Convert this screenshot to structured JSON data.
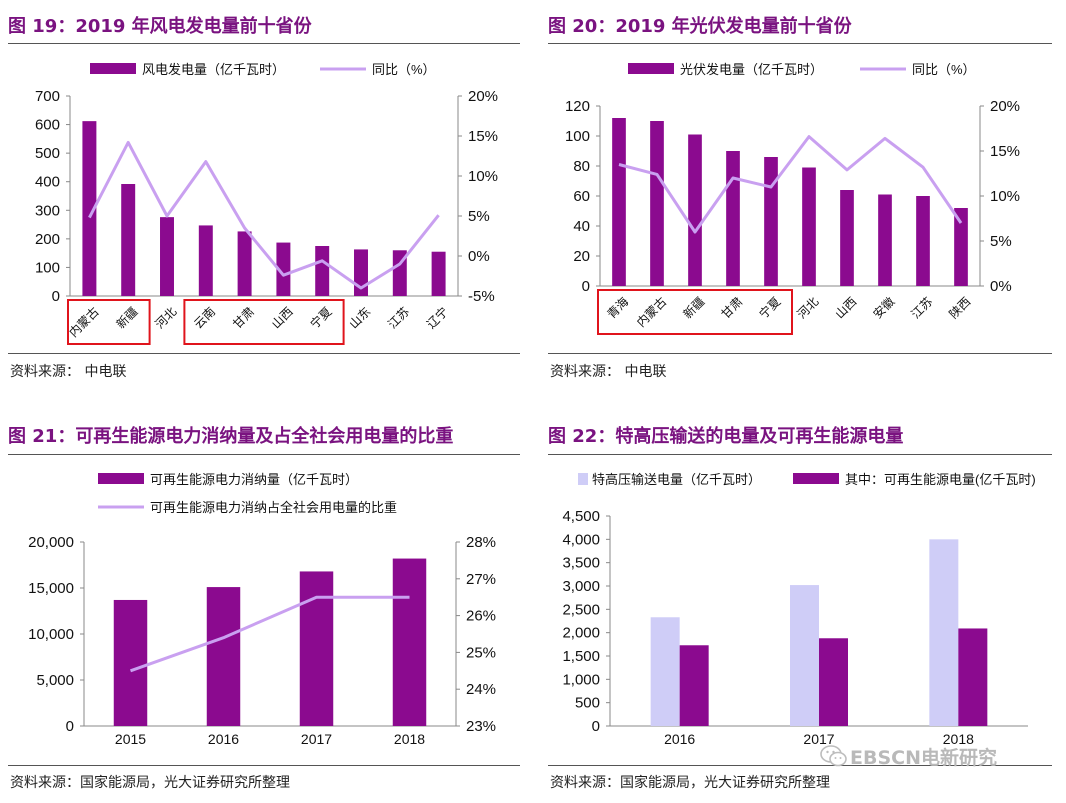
{
  "colors": {
    "bar": "#8b0a8f",
    "line": "#c9a0f0",
    "bar_light": "#cfcdf7",
    "title": "#7a1380",
    "highlight": "#e0141c"
  },
  "icons": {
    "watermark": "wechat-icon"
  },
  "charts": [
    {
      "fig_title": "图 19：2019 年风电发电量前十省份",
      "source": "资料来源：  中电联",
      "chart_data": {
        "type": "bar",
        "categories": [
          "内蒙古",
          "新疆",
          "河北",
          "云南",
          "甘肃",
          "山西",
          "宁夏",
          "山东",
          "江苏",
          "辽宁"
        ],
        "series": [
          {
            "name": "风电发电量（亿千瓦时）",
            "type": "bar",
            "axis": "left",
            "values": [
              612,
              392,
              276,
              247,
              226,
              187,
              175,
              163,
              160,
              155
            ]
          },
          {
            "name": "同比（%）",
            "type": "line",
            "axis": "right",
            "values": [
              4.8,
              14.2,
              5.0,
              11.8,
              3.5,
              -2.4,
              -0.6,
              -4.0,
              -1.0,
              5.1
            ]
          }
        ],
        "y_left": {
          "min": 0,
          "max": 700,
          "step": 100,
          "ticks": [
            "0",
            "100",
            "200",
            "300",
            "400",
            "500",
            "600",
            "700"
          ]
        },
        "y_right": {
          "min": -5,
          "max": 20,
          "step": 5,
          "ticks": [
            "-5%",
            "0%",
            "5%",
            "10%",
            "15%",
            "20%"
          ]
        },
        "highlight_groups": [
          [
            0,
            1
          ],
          [
            3,
            6
          ]
        ]
      }
    },
    {
      "fig_title": "图 20：2019 年光伏发电量前十省份",
      "source": "资料来源：  中电联",
      "chart_data": {
        "type": "bar",
        "categories": [
          "青海",
          "内蒙古",
          "新疆",
          "甘肃",
          "宁夏",
          "河北",
          "山西",
          "安徽",
          "江苏",
          "陕西"
        ],
        "series": [
          {
            "name": "光伏发电量（亿千瓦时）",
            "type": "bar",
            "axis": "left",
            "values": [
              112,
              110,
              101,
              90,
              86,
              79,
              64,
              61,
              60,
              52
            ]
          },
          {
            "name": "同比（%）",
            "type": "line",
            "axis": "right",
            "values": [
              13.5,
              12.4,
              6.0,
              12.0,
              11.0,
              16.6,
              12.9,
              16.4,
              13.2,
              7.0
            ]
          }
        ],
        "y_left": {
          "min": 0,
          "max": 120,
          "step": 20,
          "ticks": [
            "0",
            "20",
            "40",
            "60",
            "80",
            "100",
            "120"
          ]
        },
        "y_right": {
          "min": 0,
          "max": 20,
          "step": 5,
          "ticks": [
            "0%",
            "5%",
            "10%",
            "15%",
            "20%"
          ]
        },
        "highlight_groups": [
          [
            0,
            4
          ]
        ]
      }
    },
    {
      "fig_title": "图 21：可再生能源电力消纳量及占全社会用电量的比重",
      "source": "资料来源：国家能源局，光大证券研究所整理",
      "chart_data": {
        "type": "bar",
        "categories": [
          "2015",
          "2016",
          "2017",
          "2018"
        ],
        "series": [
          {
            "name": "可再生能源电力消纳量（亿千瓦时）",
            "type": "bar",
            "axis": "left",
            "values": [
              13700,
              15100,
              16800,
              18200
            ]
          },
          {
            "name": "可再生能源电力消纳占全社会用电量的比重",
            "type": "line",
            "axis": "right",
            "values": [
              24.5,
              25.4,
              26.5,
              26.5
            ]
          }
        ],
        "y_left": {
          "min": 0,
          "max": 20000,
          "step": 5000,
          "ticks": [
            "0",
            "5,000",
            "10,000",
            "15,000",
            "20,000"
          ]
        },
        "y_right": {
          "min": 23,
          "max": 28,
          "step": 1,
          "ticks": [
            "23%",
            "24%",
            "25%",
            "26%",
            "27%",
            "28%"
          ]
        }
      }
    },
    {
      "fig_title": "图 22：特高压输送的电量及可再生能源电量",
      "source": "资料来源：国家能源局，光大证券研究所整理",
      "chart_data": {
        "type": "bar",
        "categories": [
          "2016",
          "2017",
          "2018"
        ],
        "series": [
          {
            "name": "特高压输送电量（亿千瓦时）",
            "type": "bar",
            "values": [
              2330,
              3020,
              4000
            ]
          },
          {
            "name": "其中：可再生能源电量(亿千瓦时)",
            "type": "bar",
            "values": [
              1730,
              1880,
              2090
            ]
          }
        ],
        "y_left": {
          "min": 0,
          "max": 4500,
          "step": 500,
          "ticks": [
            "0",
            "500",
            "1,000",
            "1,500",
            "2,000",
            "2,500",
            "3,000",
            "3,500",
            "4,000",
            "4,500"
          ]
        }
      }
    }
  ],
  "watermark": {
    "text": "EBSCN电新研究"
  }
}
